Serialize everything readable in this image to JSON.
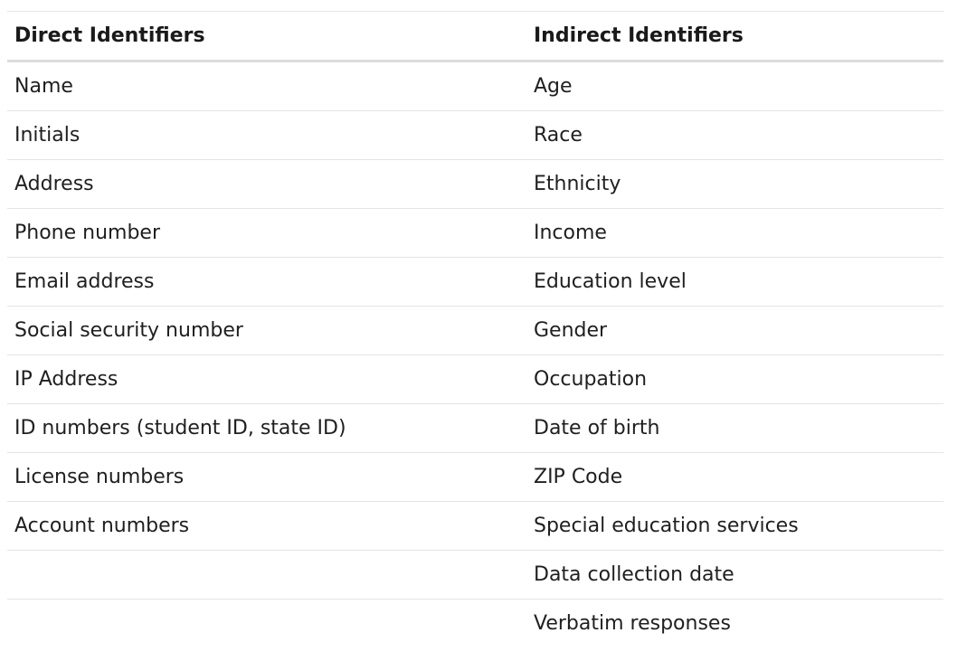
{
  "table": {
    "headers": [
      "Direct Identifiers",
      "Indirect Identifiers"
    ],
    "rows": [
      [
        "Name",
        "Age"
      ],
      [
        "Initials",
        "Race"
      ],
      [
        "Address",
        "Ethnicity"
      ],
      [
        "Phone number",
        "Income"
      ],
      [
        "Email address",
        "Education level"
      ],
      [
        "Social security number",
        "Gender"
      ],
      [
        "IP Address",
        "Occupation"
      ],
      [
        "ID numbers (student ID, state ID)",
        "Date of birth"
      ],
      [
        "License numbers",
        "ZIP Code"
      ],
      [
        "Account numbers",
        "Special education services"
      ],
      [
        "",
        "Data collection date"
      ],
      [
        "",
        "Verbatim responses"
      ]
    ]
  }
}
